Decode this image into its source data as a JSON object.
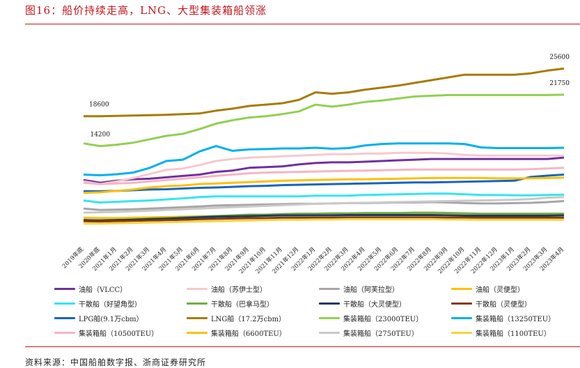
{
  "header": {
    "title": "图16：船价持续走高，LNG、大型集装箱船领涨"
  },
  "footer": {
    "source": "资料来源：中国船舶数字报、浙商证券研究所"
  },
  "chart_data": {
    "type": "line",
    "title": "",
    "xlabel": "",
    "ylabel": "",
    "grid": false,
    "legend_position": "bottom",
    "x": [
      "2019年底",
      "2020年底",
      "2021年1月",
      "2021年2月",
      "2021年3月",
      "2021年4月",
      "2021年5月",
      "2021年6月",
      "2021年7月",
      "2021年8月",
      "2021年9月",
      "2021年10月",
      "2021年11月",
      "2021年12月",
      "2022年1月",
      "2022年2月",
      "2022年3月",
      "2022年4月",
      "2022年5月",
      "2022年6月",
      "2022年7月",
      "2022年8月",
      "2022年9月",
      "2022年10月",
      "2022年11月",
      "2022年12月",
      "2023年1月",
      "2023年2月",
      "2023年3月",
      "2023年4月"
    ],
    "ylim": [
      0,
      28000
    ],
    "annotations": [
      {
        "text": "18600",
        "series": "LNG船（17.2万cbm）",
        "index": 0
      },
      {
        "text": "14200",
        "series": "集装箱船（23000TEU）",
        "index": 1
      },
      {
        "text": "25600",
        "series": "LNG船（17.2万cbm）",
        "index": 29
      },
      {
        "text": "21750",
        "series": "集装箱船（23000TEU）",
        "index": 29
      }
    ],
    "series": [
      {
        "name": "油船（VLCC）",
        "color": "#7030a0",
        "values": [
          9200,
          8800,
          9100,
          9300,
          9400,
          9600,
          9800,
          10000,
          10400,
          10600,
          11000,
          11100,
          11200,
          11500,
          11700,
          11800,
          11800,
          11900,
          12000,
          12100,
          12200,
          12300,
          12300,
          12300,
          12300,
          12300,
          12300,
          12300,
          12300,
          12500
        ]
      },
      {
        "name": "油船（苏伊士型）",
        "color": "#f8c8cc",
        "values": [
          9000,
          8600,
          9000,
          9500,
          10100,
          10700,
          10900,
          11400,
          12000,
          12300,
          12500,
          12600,
          12700,
          12800,
          12900,
          13000,
          13000,
          13100,
          13100,
          13200,
          13200,
          13200,
          13100,
          12900,
          12800,
          12800,
          12800,
          12800,
          12800,
          12800
        ]
      },
      {
        "name": "油船（阿芙拉型）",
        "color": "#a6a6a6",
        "values": [
          5000,
          4800,
          4850,
          4900,
          5000,
          5100,
          5200,
          5300,
          5450,
          5500,
          5550,
          5600,
          5650,
          5700,
          5700,
          5750,
          5800,
          5800,
          5850,
          5900,
          5900,
          5950,
          5900,
          5800,
          5750,
          5750,
          5800,
          5850,
          5950,
          6100
        ]
      },
      {
        "name": "油船（灵便型）",
        "color": "#ffc000",
        "values": [
          3650,
          3600,
          3600,
          3650,
          3700,
          3750,
          3800,
          3850,
          3900,
          3950,
          4000,
          4000,
          4000,
          4050,
          4050,
          4100,
          4100,
          4100,
          4100,
          4150,
          4150,
          4150,
          4100,
          4100,
          4050,
          4050,
          4050,
          4050,
          4100,
          4100
        ]
      },
      {
        "name": "干散船（好望角型）",
        "color": "#33e6f0",
        "values": [
          6200,
          5900,
          6000,
          6100,
          6200,
          6350,
          6500,
          6700,
          6800,
          6800,
          6800,
          6800,
          6800,
          6800,
          6900,
          6900,
          6900,
          7000,
          7050,
          7100,
          7150,
          7200,
          7200,
          7100,
          7000,
          7000,
          6950,
          6950,
          7000,
          7050
        ]
      },
      {
        "name": "干散船（巴拿马型）",
        "color": "#70ad47",
        "values": [
          3300,
          3200,
          3300,
          3400,
          3500,
          3600,
          3700,
          3800,
          3900,
          4000,
          4100,
          4100,
          4200,
          4250,
          4250,
          4300,
          4300,
          4350,
          4350,
          4350,
          4400,
          4400,
          4350,
          4300,
          4250,
          4250,
          4250,
          4250,
          4250,
          4250
        ]
      },
      {
        "name": "干散船（大灵便型）",
        "color": "#1f3864",
        "values": [
          3300,
          3250,
          3300,
          3350,
          3450,
          3500,
          3600,
          3700,
          3800,
          3850,
          3900,
          3950,
          4000,
          4000,
          4000,
          4000,
          4050,
          4050,
          4050,
          4050,
          4050,
          4050,
          4000,
          3950,
          3950,
          3950,
          3950,
          3950,
          3950,
          4000
        ]
      },
      {
        "name": "干散船（灵便型）",
        "color": "#843c0c",
        "values": [
          3150,
          3100,
          3150,
          3200,
          3250,
          3300,
          3350,
          3450,
          3500,
          3550,
          3600,
          3600,
          3650,
          3650,
          3650,
          3650,
          3700,
          3700,
          3700,
          3700,
          3700,
          3700,
          3650,
          3650,
          3650,
          3650,
          3650,
          3650,
          3650,
          3650
        ]
      },
      {
        "name": "LPG船(9.1万cbm）",
        "color": "#1565c0",
        "values": [
          7550,
          7550,
          7600,
          7700,
          7800,
          7850,
          7950,
          8050,
          8100,
          8200,
          8300,
          8350,
          8450,
          8500,
          8550,
          8600,
          8650,
          8700,
          8750,
          8800,
          8850,
          8850,
          8900,
          8950,
          9000,
          9050,
          9100,
          9650,
          9850,
          10000
        ]
      },
      {
        "name": "LNG船（17.2万cbm）",
        "color": "#a67c00",
        "values": [
          18600,
          18600,
          18650,
          18700,
          18750,
          18800,
          18900,
          19000,
          19400,
          19700,
          20100,
          20300,
          20500,
          21000,
          22100,
          21900,
          22100,
          22500,
          22800,
          23100,
          23500,
          23900,
          24300,
          24700,
          24700,
          24700,
          24700,
          24900,
          25300,
          25600
        ]
      },
      {
        "name": "集装箱船（23000TEU）",
        "color": "#92d050",
        "values": [
          14600,
          14200,
          14400,
          14700,
          15200,
          15700,
          16000,
          16700,
          17500,
          18000,
          18400,
          18600,
          18900,
          19300,
          20300,
          20000,
          20300,
          20700,
          20900,
          21200,
          21500,
          21600,
          21700,
          21700,
          21700,
          21700,
          21700,
          21700,
          21700,
          21750
        ]
      },
      {
        "name": "集装箱船（13250TEU）",
        "color": "#00b0f0",
        "values": [
          10000,
          9900,
          10050,
          10300,
          11000,
          12000,
          12200,
          13400,
          14200,
          13500,
          13700,
          13750,
          13850,
          13850,
          13950,
          13800,
          13900,
          14300,
          14500,
          14600,
          14600,
          14600,
          14600,
          14500,
          14000,
          13900,
          13900,
          13900,
          13900,
          13950
        ]
      },
      {
        "name": "集装箱船（10500TEU）",
        "color": "#f4b6c2",
        "values": [
          8800,
          8600,
          8700,
          8800,
          9000,
          9200,
          9400,
          9600,
          9800,
          10000,
          10200,
          10300,
          10350,
          10400,
          10450,
          10500,
          10550,
          10600,
          10650,
          10700,
          10750,
          10750,
          10750,
          10750,
          10750,
          10750,
          10750,
          10800,
          10900,
          11000
        ]
      },
      {
        "name": "集装箱船（6600TEU）",
        "color": "#ffc000",
        "values": [
          7300,
          7400,
          7600,
          7800,
          8100,
          8300,
          8400,
          8600,
          8700,
          8800,
          8900,
          9000,
          9100,
          9150,
          9200,
          9250,
          9300,
          9300,
          9350,
          9400,
          9450,
          9500,
          9500,
          9500,
          9500,
          9450,
          9450,
          9450,
          9500,
          9550
        ]
      },
      {
        "name": "集装箱船（2750TEU）",
        "color": "#c9c9c9",
        "values": [
          4400,
          4450,
          4500,
          4600,
          4700,
          4800,
          4900,
          5000,
          5100,
          5200,
          5300,
          5400,
          5500,
          5600,
          5700,
          5750,
          5800,
          5850,
          5900,
          5950,
          6000,
          6050,
          6100,
          6150,
          6200,
          6250,
          6300,
          6400,
          6600,
          6700
        ]
      },
      {
        "name": "集装箱船（1100TEU）",
        "color": "#f7d33c",
        "values": [
          2800,
          2800,
          2850,
          2900,
          2950,
          3000,
          3050,
          3100,
          3150,
          3200,
          3250,
          3300,
          3350,
          3350,
          3400,
          3400,
          3450,
          3450,
          3450,
          3450,
          3450,
          3450,
          3400,
          3400,
          3350,
          3350,
          3350,
          3350,
          3350,
          3350
        ]
      }
    ]
  }
}
